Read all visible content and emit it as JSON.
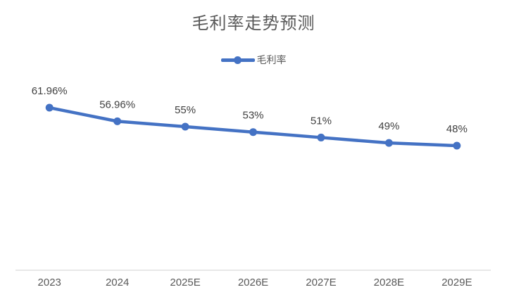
{
  "chart": {
    "title": "毛利率走势预测"
  },
  "legend": {
    "label": "毛利率"
  },
  "chart_data": {
    "type": "line",
    "title": "毛利率走势预测",
    "categories": [
      "2023",
      "2024",
      "2025E",
      "2026E",
      "2027E",
      "2028E",
      "2029E"
    ],
    "series": [
      {
        "name": "毛利率",
        "values": [
          61.96,
          56.96,
          55,
          53,
          51,
          49,
          48
        ],
        "data_labels": [
          "61.96%",
          "56.96%",
          "55%",
          "53%",
          "51%",
          "49%",
          "48%"
        ]
      }
    ],
    "xlabel": "",
    "ylabel": "",
    "ylim": [
      0,
      70
    ],
    "grid": false,
    "y_axis_visible": false,
    "legend_position": "top",
    "colors": {
      "line": "#4472C4",
      "marker": "#4472C4",
      "axis_line": "#D9D9D9",
      "title_text": "#595959",
      "axis_text": "#595959",
      "data_label_text": "#404040"
    }
  }
}
